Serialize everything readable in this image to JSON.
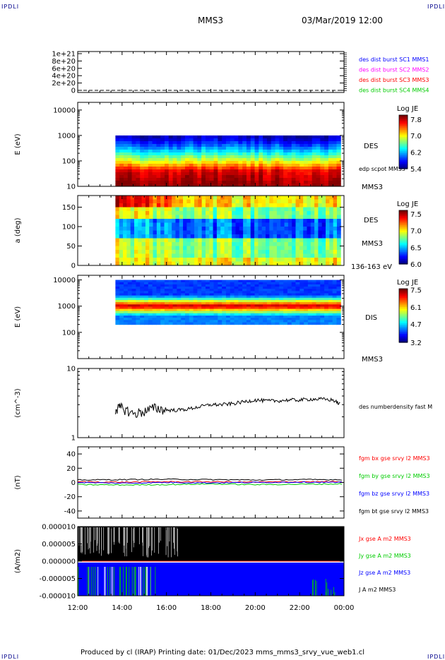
{
  "corner_label": "IPDLI",
  "header": {
    "spacecraft": "MMS3",
    "datetime": "03/Mar/2019 12:00"
  },
  "footer": "Produced by cl (IRAP)   Printing date: 01/Dec/2023   mms_mms3_srvy_vue_web1.cl",
  "time_axis": {
    "ticks": [
      "12:00",
      "14:00",
      "16:00",
      "18:00",
      "20:00",
      "22:00",
      "00:00"
    ],
    "start_hour": 12,
    "end_hour": 24,
    "data_start_hour": 13.7,
    "data_end_hour": 23.85
  },
  "chart_data": [
    {
      "type": "line",
      "panel": "burst",
      "y_ticks": [
        "1e+21",
        "8e+20",
        "6e+20",
        "4e+20",
        "2e+20",
        "0"
      ],
      "ylim": [
        0,
        1e+21
      ],
      "series": [
        {
          "name": "des dist burst SC1 MMS1",
          "color": "#0000ff"
        },
        {
          "name": "des dist burst SC2 MMS2",
          "color": "#ff00ff"
        },
        {
          "name": "des dist burst SC3 MMS3",
          "color": "#ff0000"
        },
        {
          "name": "des dist burst SC4 MMS4",
          "color": "#00cc00"
        }
      ],
      "values_all_series": 0
    },
    {
      "type": "heatmap",
      "panel": "des_energy",
      "ylabel": "E (eV)",
      "y_scale": "log",
      "ylim": [
        10,
        20000
      ],
      "y_ticks": [
        "10000",
        "1000",
        "100",
        "10"
      ],
      "label": "DES",
      "extra_labels": [
        "edp scpot MMS3",
        "MMS3"
      ],
      "cbar": {
        "title": "Log JE",
        "ticks": [
          "7.8",
          "7.0",
          "6.2",
          "5.4"
        ],
        "min": 5.4,
        "max": 8.0
      },
      "e_min_ev": 10,
      "e_max_ev": 1000,
      "peak_ev": 40
    },
    {
      "type": "heatmap",
      "panel": "des_pitch",
      "ylabel": "a (deg)",
      "ylim": [
        0,
        180
      ],
      "y_ticks": [
        "150",
        "100",
        "50",
        "0"
      ],
      "label": "DES",
      "extra_labels": [
        "MMS3",
        "136-163 eV"
      ],
      "cbar": {
        "title": "Log JE",
        "ticks": [
          "7.5",
          "7.0",
          "6.5",
          "6.0"
        ],
        "min": 6.0,
        "max": 7.6
      }
    },
    {
      "type": "heatmap",
      "panel": "dis_energy",
      "ylabel": "E (eV)",
      "y_scale": "log",
      "ylim": [
        10,
        15000
      ],
      "y_ticks": [
        "10000",
        "1000",
        "100"
      ],
      "label": "DIS",
      "extra_labels": [
        "MMS3"
      ],
      "cbar": {
        "title": "Log JE",
        "ticks": [
          "7.5",
          "6.1",
          "4.7",
          "3.2"
        ],
        "min": 3.2,
        "max": 7.6
      },
      "e_min_ev": 200,
      "e_max_ev": 10000,
      "peak_ev": 1000
    },
    {
      "type": "line",
      "panel": "density",
      "ylabel": "(cm^-3)",
      "y_scale": "log",
      "ylim": [
        1,
        10
      ],
      "y_ticks": [
        "10",
        "1"
      ],
      "series": [
        {
          "name": "des numberdensity fast M",
          "color": "#000000",
          "x_hours": [
            13.7,
            14.0,
            14.5,
            15.0,
            15.5,
            16.0,
            16.5,
            17.0,
            17.5,
            18.0,
            18.5,
            19.0,
            19.5,
            20.0,
            20.5,
            21.0,
            21.5,
            22.0,
            22.5,
            23.0,
            23.5,
            23.85
          ],
          "values": [
            2.6,
            2.7,
            2.2,
            2.4,
            2.7,
            2.5,
            2.5,
            2.6,
            2.8,
            3.0,
            3.0,
            3.1,
            3.3,
            3.5,
            3.4,
            3.4,
            3.5,
            3.5,
            3.6,
            3.6,
            3.5,
            3.0
          ]
        }
      ]
    },
    {
      "type": "line",
      "panel": "fgm",
      "ylabel": "(nT)",
      "ylim": [
        -50,
        50
      ],
      "y_ticks": [
        "40",
        "20",
        "0",
        "-20",
        "-40"
      ],
      "series": [
        {
          "name": "fgm bx gse srvy l2 MMS3",
          "color": "#ff0000",
          "x_hours": [
            12,
            14,
            16,
            18,
            20,
            22,
            24
          ],
          "values": [
            1,
            0.5,
            1,
            1,
            0.5,
            1,
            1
          ]
        },
        {
          "name": "fgm by gse srvy l2 MMS3",
          "color": "#00cc00",
          "x_hours": [
            12,
            14,
            16,
            18,
            20,
            22,
            24
          ],
          "values": [
            -3,
            -3.5,
            -3,
            -2,
            -3,
            -2.5,
            -2
          ]
        },
        {
          "name": "fgm bz gse srvy l2 MMS3",
          "color": "#0000ff",
          "x_hours": [
            12,
            14,
            16,
            18,
            20,
            22,
            24
          ],
          "values": [
            0,
            -1,
            0,
            -0.5,
            0,
            0.5,
            0
          ]
        },
        {
          "name": "fgm bt gse srvy l2 MMS3",
          "color": "#000000",
          "x_hours": [
            12,
            14,
            16,
            18,
            20,
            22,
            24
          ],
          "values": [
            3.5,
            4,
            4.5,
            4,
            3.5,
            4,
            4
          ]
        }
      ]
    },
    {
      "type": "line",
      "panel": "current",
      "ylabel": "(A/m2)",
      "ylim": [
        -1e-05,
        1e-05
      ],
      "y_ticks": [
        "0.000010",
        "0.000005",
        "0.000000",
        "-0.000005",
        "-0.000010"
      ],
      "series": [
        {
          "name": "Jx gse A m2 MMS3",
          "color": "#ff0000"
        },
        {
          "name": "Jy gse A m2 MMS3",
          "color": "#00cc00"
        },
        {
          "name": "Jz gse A m2 MMS3",
          "color": "#0000ff"
        },
        {
          "name": "J A m2 MMS3",
          "color": "#000000"
        }
      ]
    }
  ]
}
